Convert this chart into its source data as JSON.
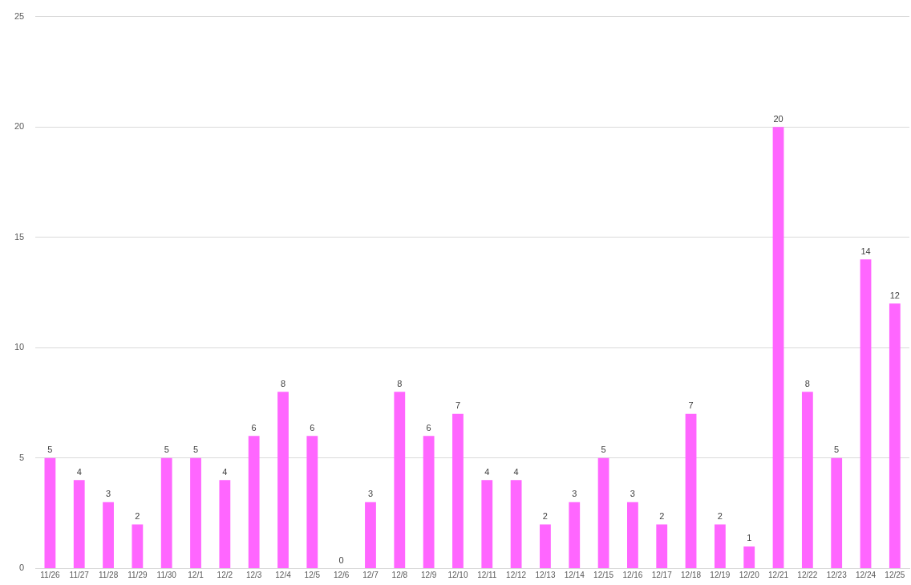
{
  "chart_data": {
    "type": "bar",
    "categories": [
      "11/26",
      "11/27",
      "11/28",
      "11/29",
      "11/30",
      "12/1",
      "12/2",
      "12/3",
      "12/4",
      "12/5",
      "12/6",
      "12/7",
      "12/8",
      "12/9",
      "12/10",
      "12/11",
      "12/12",
      "12/13",
      "12/14",
      "12/15",
      "12/16",
      "12/17",
      "12/18",
      "12/19",
      "12/20",
      "12/21",
      "12/22",
      "12/23",
      "12/24",
      "12/25"
    ],
    "values": [
      5,
      4,
      3,
      2,
      5,
      5,
      4,
      6,
      8,
      6,
      0,
      3,
      8,
      6,
      7,
      4,
      4,
      2,
      3,
      5,
      3,
      2,
      7,
      2,
      1,
      20,
      8,
      5,
      14,
      12
    ],
    "color": "#ff66ff",
    "ylim": [
      0,
      25
    ],
    "yticks": [
      0,
      5,
      10,
      15,
      20,
      25
    ],
    "grid": "y",
    "data_labels": true,
    "legend": false
  }
}
